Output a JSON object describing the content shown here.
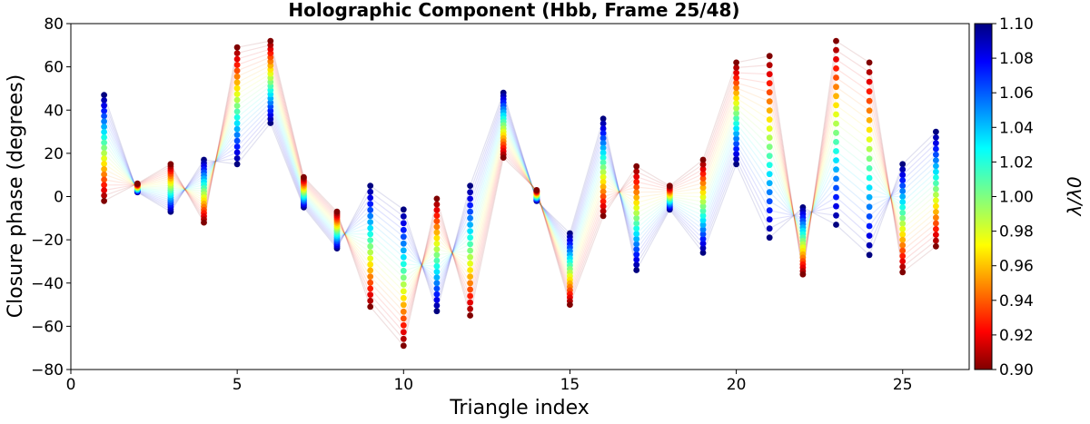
{
  "chart_data": {
    "type": "scatter",
    "title": "Holographic Component (Hbb, Frame 25/48)",
    "xlabel": "Triangle index",
    "ylabel": "Closure phase (degrees)",
    "xlim": [
      0,
      27
    ],
    "ylim": [
      -80,
      80
    ],
    "xticks": [
      0,
      5,
      10,
      15,
      20,
      25
    ],
    "yticks": [
      -80,
      -60,
      -40,
      -20,
      0,
      20,
      40,
      60,
      80
    ],
    "grid": false,
    "colormap": "jet",
    "colorbar": {
      "label": "λ/λ0",
      "range": [
        0.9,
        1.1
      ],
      "ticks": [
        "0.90",
        "0.92",
        "0.94",
        "0.96",
        "0.98",
        "1.00",
        "1.02",
        "1.04",
        "1.06",
        "1.08",
        "1.10"
      ]
    },
    "wavelength_ratios": [
      0.9,
      0.91,
      0.92,
      0.93,
      0.94,
      0.95,
      0.96,
      0.97,
      0.98,
      0.99,
      1.0,
      1.01,
      1.02,
      1.03,
      1.04,
      1.05,
      1.06,
      1.07,
      1.08,
      1.09,
      1.1
    ],
    "triangles": [
      {
        "index": 1,
        "phase_at_0_90": 47,
        "phase_at_1_10": -2
      },
      {
        "index": 2,
        "phase_at_0_90": 2,
        "phase_at_1_10": 6
      },
      {
        "index": 3,
        "phase_at_0_90": -7,
        "phase_at_1_10": 15
      },
      {
        "index": 4,
        "phase_at_0_90": 17,
        "phase_at_1_10": -12
      },
      {
        "index": 5,
        "phase_at_0_90": 15,
        "phase_at_1_10": 69
      },
      {
        "index": 6,
        "phase_at_0_90": 34,
        "phase_at_1_10": 72
      },
      {
        "index": 7,
        "phase_at_0_90": -5,
        "phase_at_1_10": 9
      },
      {
        "index": 8,
        "phase_at_0_90": -24,
        "phase_at_1_10": -7
      },
      {
        "index": 9,
        "phase_at_0_90": 5,
        "phase_at_1_10": -51
      },
      {
        "index": 10,
        "phase_at_0_90": -6,
        "phase_at_1_10": -69
      },
      {
        "index": 11,
        "phase_at_0_90": -53,
        "phase_at_1_10": -1
      },
      {
        "index": 12,
        "phase_at_0_90": 5,
        "phase_at_1_10": -55
      },
      {
        "index": 13,
        "phase_at_0_90": 48,
        "phase_at_1_10": 18
      },
      {
        "index": 14,
        "phase_at_0_90": -2,
        "phase_at_1_10": 3
      },
      {
        "index": 15,
        "phase_at_0_90": -17,
        "phase_at_1_10": -50
      },
      {
        "index": 16,
        "phase_at_0_90": 36,
        "phase_at_1_10": -9
      },
      {
        "index": 17,
        "phase_at_0_90": -34,
        "phase_at_1_10": 14
      },
      {
        "index": 18,
        "phase_at_0_90": -6,
        "phase_at_1_10": 5
      },
      {
        "index": 19,
        "phase_at_0_90": -26,
        "phase_at_1_10": 17
      },
      {
        "index": 20,
        "phase_at_0_90": 15,
        "phase_at_1_10": 62
      },
      {
        "index": 21,
        "phase_at_0_90": -19,
        "phase_at_1_10": 65
      },
      {
        "index": 22,
        "phase_at_0_90": -5,
        "phase_at_1_10": -36
      },
      {
        "index": 23,
        "phase_at_0_90": -13,
        "phase_at_1_10": 72
      },
      {
        "index": 24,
        "phase_at_0_90": -27,
        "phase_at_1_10": 62
      },
      {
        "index": 25,
        "phase_at_0_90": 15,
        "phase_at_1_10": -35
      },
      {
        "index": 26,
        "phase_at_0_90": 30,
        "phase_at_1_10": -23
      }
    ]
  }
}
